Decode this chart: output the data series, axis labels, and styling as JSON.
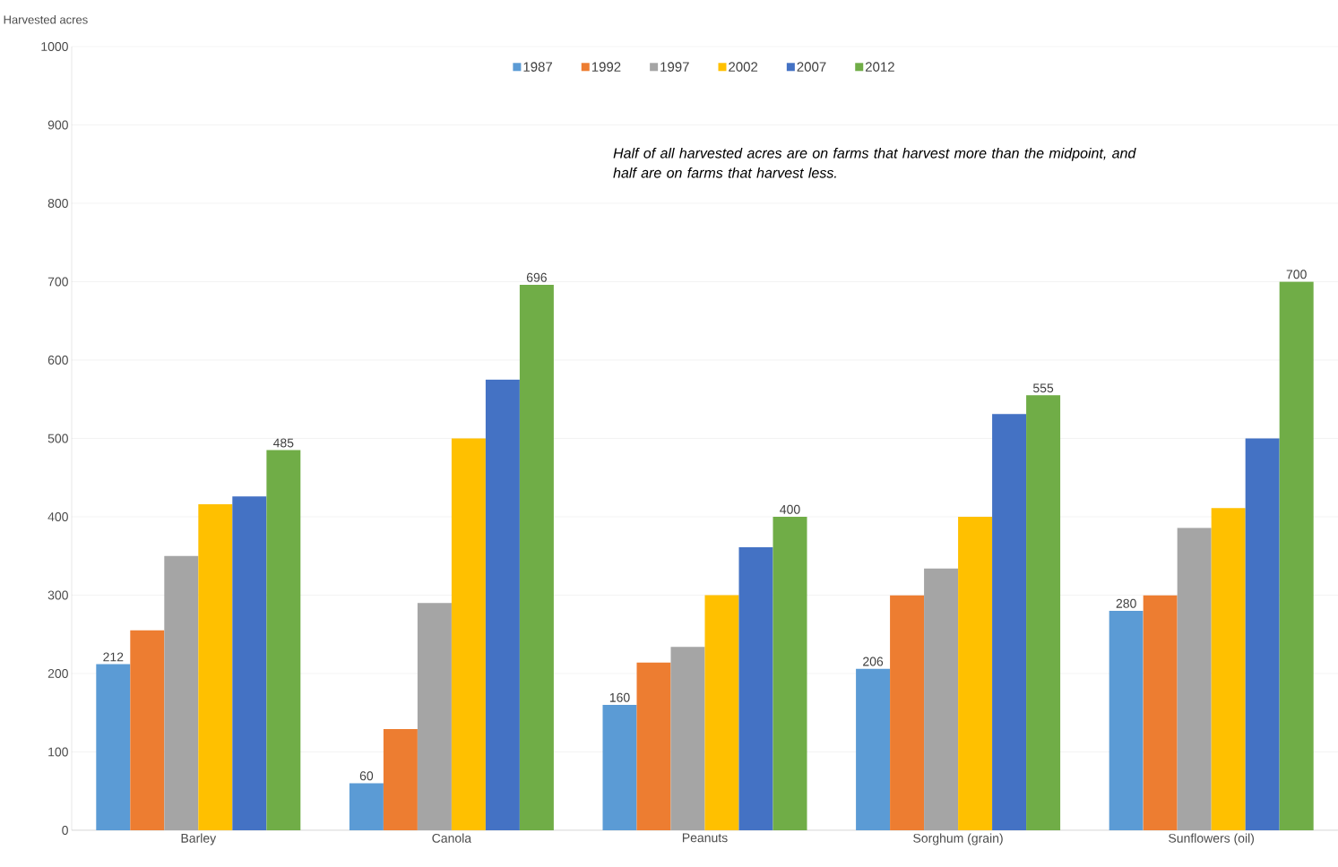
{
  "chart_data": {
    "type": "bar",
    "ylabel": "Harvested acres",
    "categories": [
      "Barley",
      "Canola",
      "Peanuts",
      "Sorghum (grain)",
      "Sunflowers (oil)"
    ],
    "series": [
      {
        "name": "1987",
        "color": "#5b9bd5",
        "values": [
          212,
          60,
          160,
          206,
          280
        ],
        "value_labels": [
          "212",
          "60",
          "160",
          "206",
          "280"
        ]
      },
      {
        "name": "1992",
        "color": "#ed7d31",
        "values": [
          255,
          129,
          214,
          300,
          300
        ]
      },
      {
        "name": "1997",
        "color": "#a5a5a5",
        "values": [
          350,
          290,
          234,
          334,
          386
        ]
      },
      {
        "name": "2002",
        "color": "#ffc000",
        "values": [
          416,
          500,
          300,
          400,
          411
        ]
      },
      {
        "name": "2007",
        "color": "#4472c4",
        "values": [
          426,
          575,
          361,
          531,
          500
        ]
      },
      {
        "name": "2012",
        "color": "#70ad47",
        "values": [
          485,
          696,
          400,
          555,
          700
        ],
        "value_labels": [
          "485",
          "696",
          "400",
          "555",
          "700"
        ]
      }
    ],
    "ylim": [
      0,
      1000
    ],
    "yticks": [
      0,
      100,
      200,
      300,
      400,
      500,
      600,
      700,
      800,
      900,
      1000
    ],
    "grid": "y",
    "legend": "top",
    "annotations": [
      "Half of all harvested acres are on farms that harvest more than the midpoint, and half are on farms that harvest less."
    ]
  }
}
